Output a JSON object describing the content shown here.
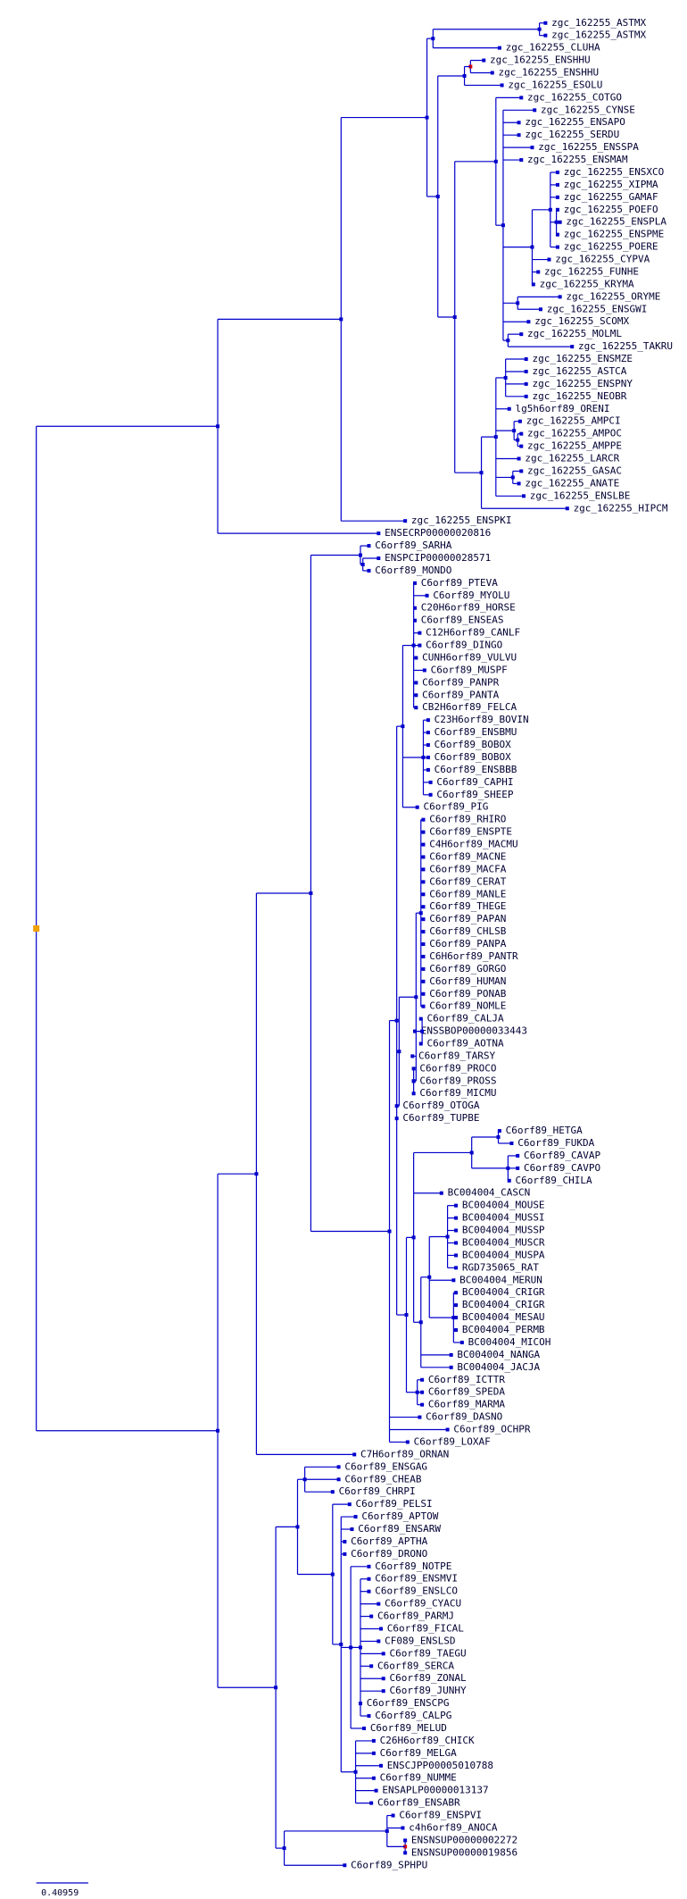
{
  "leaves": [
    "zgc_162255_ASTMX",
    "zgc_162255_ASTMX",
    "zgc_162255_CLUHA",
    "zgc_162255_ENSHHU",
    "zgc_162255_ENSHHU",
    "zgc_162255_ESOLU",
    "zgc_162255_COTGO",
    "zgc_162255_CYNSE",
    "zgc_162255_ENSAPO",
    "zgc_162255_SERDU",
    "zgc_162255_ENSSPA",
    "zgc_162255_ENSMAM",
    "zgc_162255_ENSXCO",
    "zgc_162255_XIPMA",
    "zgc_162255_GAMAF",
    "zgc_162255_POEFO",
    "zgc_162255_ENSPLA",
    "zgc_162255_ENSPME",
    "zgc_162255_POERE",
    "zgc_162255_CYPVA",
    "zgc_162255_FUNHE",
    "zgc_162255_KRYMA",
    "zgc_162255_ORYME",
    "zgc_162255_ENSGWI",
    "zgc_162255_SCOMX",
    "zgc_162255_MOLML",
    "zgc_162255_TAKRU",
    "zgc_162255_ENSMZE",
    "zgc_162255_ASTCA",
    "zgc_162255_ENSPNY",
    "zgc_162255_NEOBR",
    "lg5h6orf89_ORENI",
    "zgc_162255_AMPCI",
    "zgc_162255_AMPOC",
    "zgc_162255_AMPPE",
    "zgc_162255_LARCR",
    "zgc_162255_GASAC",
    "zgc_162255_ANATE",
    "zgc_162255_ENSLBE",
    "zgc_162255_HIPCM",
    "zgc_162255_ENSPKI",
    "ENSECRP00000020816",
    "C6orf89_SARHA",
    "ENSPCIP00000028571",
    "C6orf89_MONDO",
    "C6orf89_PTEVA",
    "C6orf89_MYOLU",
    "C20H6orf89_HORSE",
    "C6orf89_ENSEAS",
    "C12H6orf89_CANLF",
    "C6orf89_DINGO",
    "CUNH6orf89_VULVU",
    "C6orf89_MUSPF",
    "C6orf89_PANPR",
    "C6orf89_PANTA",
    "CB2H6orf89_FELCA",
    "C23H6orf89_BOVIN",
    "C6orf89_ENSBMU",
    "C6orf89_BOBOX",
    "C6orf89_BOBOX",
    "C6orf89_ENSBBB",
    "C6orf89_CAPHI",
    "C6orf89_SHEEP",
    "C6orf89_PIG",
    "C6orf89_RHIRO",
    "C6orf89_ENSPTE",
    "C4H6orf89_MACMU",
    "C6orf89_MACNE",
    "C6orf89_MACFA",
    "C6orf89_CERAT",
    "C6orf89_MANLE",
    "C6orf89_THEGE",
    "C6orf89_PAPAN",
    "C6orf89_CHLSB",
    "C6orf89_PANPA",
    "C6H6orf89_PANTR",
    "C6orf89_GORGO",
    "C6orf89_HUMAN",
    "C6orf89_PONAB",
    "C6orf89_NOMLE",
    "C6orf89_CALJA",
    "ENSSBOP00000033443",
    "C6orf89_AOTNA",
    "C6orf89_TARSY",
    "C6orf89_PROCO",
    "C6orf89_PROSS",
    "C6orf89_MICMU",
    "C6orf89_OTOGA",
    "C6orf89_TUPBE",
    "C6orf89_HETGA",
    "C6orf89_FUKDA",
    "C6orf89_CAVAP",
    "C6orf89_CAVPO",
    "C6orf89_CHILA",
    "BC004004_CASCN",
    "BC004004_MOUSE",
    "BC004004_MUSSI",
    "BC004004_MUSSP",
    "BC004004_MUSCR",
    "BC004004_MUSPA",
    "RGD735065_RAT",
    "BC004004_MERUN",
    "BC004004_CRIGR",
    "BC004004_CRIGR",
    "BC004004_MESAU",
    "BC004004_PERMB",
    "BC004004_MICOH",
    "BC004004_NANGA",
    "BC004004_JACJA",
    "C6orf89_ICTTR",
    "C6orf89_SPEDA",
    "C6orf89_MARMA",
    "C6orf89_DASNO",
    "C6orf89_OCHPR",
    "C6orf89_LOXAF",
    "C7H6orf89_ORNAN",
    "C6orf89_ENSGAG",
    "C6orf89_CHEAB",
    "C6orf89_CHRPI",
    "C6orf89_PELSI",
    "C6orf89_APTOW",
    "C6orf89_ENSARW",
    "C6orf89_APTHA",
    "C6orf89_DRONO",
    "C6orf89_NOTPE",
    "C6orf89_ENSMVI",
    "C6orf89_ENSLCO",
    "C6orf89_CYACU",
    "C6orf89_PARMJ",
    "C6orf89_FICAL",
    "CF089_ENSLSD",
    "C6orf89_TAEGU",
    "C6orf89_SERCA",
    "C6orf89_ZONAL",
    "C6orf89_JUNHY",
    "C6orf89_ENSCPG",
    "C6orf89_CALPG",
    "C6orf89_MELUD",
    "C26H6orf89_CHICK",
    "C6orf89_MELGA",
    "ENSCJPP00005010788",
    "C6orf89_NUMME",
    "ENSAPLP00000013137",
    "C6orf89_ENSABR",
    "C6orf89_ENSPVI",
    "c4h6orf89_ANOCA",
    "ENSNSUP00000002272",
    "ENSNSUP00000019856",
    "C6orf89_SPHPU"
  ],
  "scale_bar": "0.40959"
}
